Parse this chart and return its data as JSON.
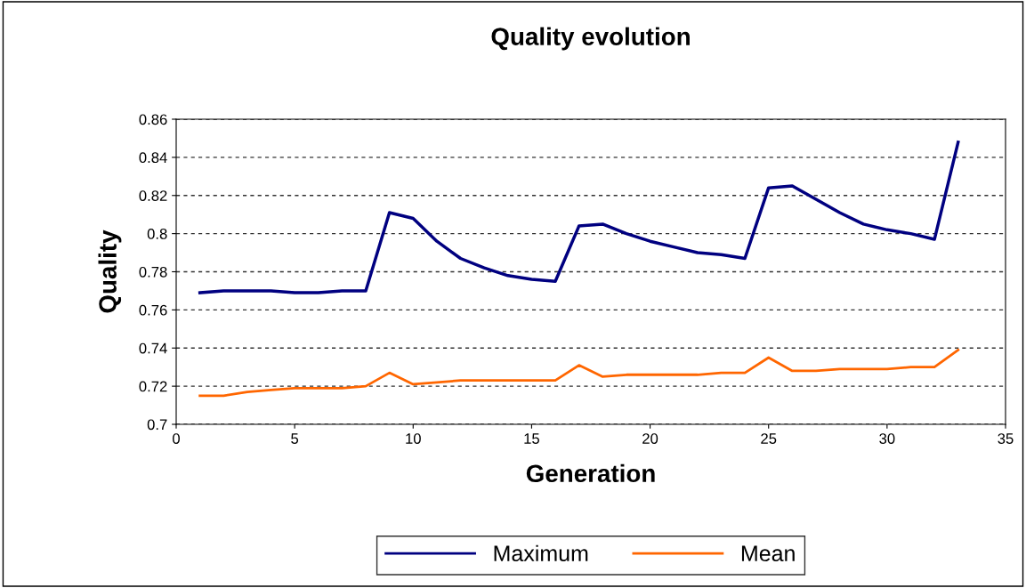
{
  "chart_data": {
    "type": "line",
    "title": "Quality evolution",
    "xlabel": "Generation",
    "ylabel": "Quality",
    "x": [
      1,
      2,
      3,
      4,
      5,
      6,
      7,
      8,
      9,
      10,
      11,
      12,
      13,
      14,
      15,
      16,
      17,
      18,
      19,
      20,
      21,
      22,
      23,
      24,
      25,
      26,
      27,
      28,
      29,
      30,
      31,
      32,
      33
    ],
    "series": [
      {
        "name": "Maximum",
        "color": "#000080",
        "values": [
          0.769,
          0.77,
          0.77,
          0.77,
          0.769,
          0.769,
          0.77,
          0.77,
          0.811,
          0.808,
          0.796,
          0.787,
          0.782,
          0.778,
          0.776,
          0.775,
          0.804,
          0.805,
          0.8,
          0.796,
          0.793,
          0.79,
          0.789,
          0.787,
          0.824,
          0.825,
          0.818,
          0.811,
          0.805,
          0.802,
          0.8,
          0.797,
          0.848
        ]
      },
      {
        "name": "Mean",
        "color": "#ff6600",
        "values": [
          0.715,
          0.715,
          0.717,
          0.718,
          0.719,
          0.719,
          0.719,
          0.72,
          0.727,
          0.721,
          0.722,
          0.723,
          0.723,
          0.723,
          0.723,
          0.723,
          0.731,
          0.725,
          0.726,
          0.726,
          0.726,
          0.726,
          0.727,
          0.727,
          0.735,
          0.728,
          0.728,
          0.729,
          0.729,
          0.729,
          0.73,
          0.73,
          0.739
        ]
      }
    ],
    "xlim": [
      0,
      35
    ],
    "xticks": [
      0,
      5,
      10,
      15,
      20,
      25,
      30,
      35
    ],
    "ylim": [
      0.7,
      0.86
    ],
    "yticks": [
      {
        "value": 0.7,
        "label": "0.7"
      },
      0.72,
      0.74,
      0.76,
      0.78,
      {
        "value": 0.8,
        "label": "0.8"
      },
      0.82,
      0.84,
      0.86
    ],
    "grid": "y",
    "legend": "bottom",
    "marker": "none",
    "line_style": "solid"
  }
}
